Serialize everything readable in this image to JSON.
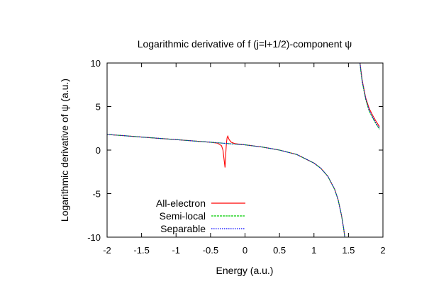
{
  "chart_data": {
    "type": "line",
    "title": "Logarithmic derivative of f (j=l+1/2)-component ψ",
    "xlabel": "Energy (a.u.)",
    "ylabel": "Logarithmic derivative of ψ (a.u.)",
    "xlim": [
      -2,
      2
    ],
    "ylim": [
      -10,
      10
    ],
    "xticks": [
      -2,
      -1.5,
      -1,
      -0.5,
      0,
      0.5,
      1,
      1.5,
      2
    ],
    "yticks": [
      -10,
      -5,
      0,
      5,
      10
    ],
    "grid": false,
    "legend_position": "bottom-left",
    "series": [
      {
        "name": "All-electron",
        "color": "#ff0000",
        "x": [
          -2,
          -1.75,
          -1.5,
          -1.25,
          -1.0,
          -0.75,
          -0.5,
          -0.4,
          -0.34,
          -0.32,
          -0.3,
          -0.29,
          -0.28,
          -0.27,
          -0.26,
          -0.25,
          -0.23,
          -0.2,
          -0.15,
          -0.1,
          0,
          0.25,
          0.5,
          0.75,
          1.0,
          1.1,
          1.2,
          1.3,
          1.35,
          1.4,
          1.43,
          1.45,
          1.46,
          null,
          1.66,
          1.68,
          1.7,
          1.75,
          1.8,
          1.85,
          1.9,
          1.95
        ],
        "y": [
          1.8,
          1.65,
          1.5,
          1.35,
          1.2,
          1.05,
          0.9,
          0.8,
          0.5,
          0.0,
          -1.3,
          -2.0,
          -0.5,
          0.7,
          1.4,
          1.6,
          1.2,
          0.9,
          0.75,
          0.7,
          0.6,
          0.35,
          0.0,
          -0.5,
          -1.5,
          -2.1,
          -3.0,
          -4.5,
          -5.7,
          -7.5,
          -9.0,
          -10.2,
          -10.5,
          null,
          10.5,
          9.2,
          8.0,
          6.0,
          4.8,
          4.0,
          3.3,
          2.7
        ]
      },
      {
        "name": "Semi-local",
        "color": "#00cc00",
        "x": [
          -2,
          -1.75,
          -1.5,
          -1.25,
          -1.0,
          -0.75,
          -0.5,
          -0.25,
          0,
          0.25,
          0.5,
          0.75,
          1.0,
          1.1,
          1.2,
          1.3,
          1.35,
          1.4,
          1.43,
          1.45,
          1.46,
          null,
          1.66,
          1.68,
          1.7,
          1.75,
          1.8,
          1.85,
          1.9,
          1.95
        ],
        "y": [
          1.8,
          1.65,
          1.5,
          1.35,
          1.2,
          1.05,
          0.9,
          0.75,
          0.6,
          0.35,
          0.0,
          -0.5,
          -1.5,
          -2.1,
          -3.0,
          -4.5,
          -5.7,
          -7.5,
          -9.0,
          -10.2,
          -10.5,
          null,
          10.5,
          9.0,
          7.8,
          5.8,
          4.5,
          3.7,
          3.0,
          2.4
        ]
      },
      {
        "name": "Separable",
        "color": "#0000ff",
        "x": [
          -2,
          -1.75,
          -1.5,
          -1.25,
          -1.0,
          -0.75,
          -0.5,
          -0.25,
          0,
          0.25,
          0.5,
          0.75,
          1.0,
          1.1,
          1.2,
          1.3,
          1.35,
          1.4,
          1.43,
          1.45,
          1.46,
          null,
          1.66,
          1.68,
          1.7,
          1.75,
          1.8,
          1.85,
          1.9,
          1.95
        ],
        "y": [
          1.8,
          1.65,
          1.5,
          1.35,
          1.2,
          1.05,
          0.9,
          0.75,
          0.6,
          0.35,
          0.0,
          -0.5,
          -1.5,
          -2.1,
          -3.0,
          -4.5,
          -5.7,
          -7.5,
          -9.0,
          -10.2,
          -10.5,
          null,
          10.5,
          9.1,
          7.9,
          5.9,
          4.6,
          3.8,
          3.1,
          2.5
        ]
      }
    ]
  }
}
